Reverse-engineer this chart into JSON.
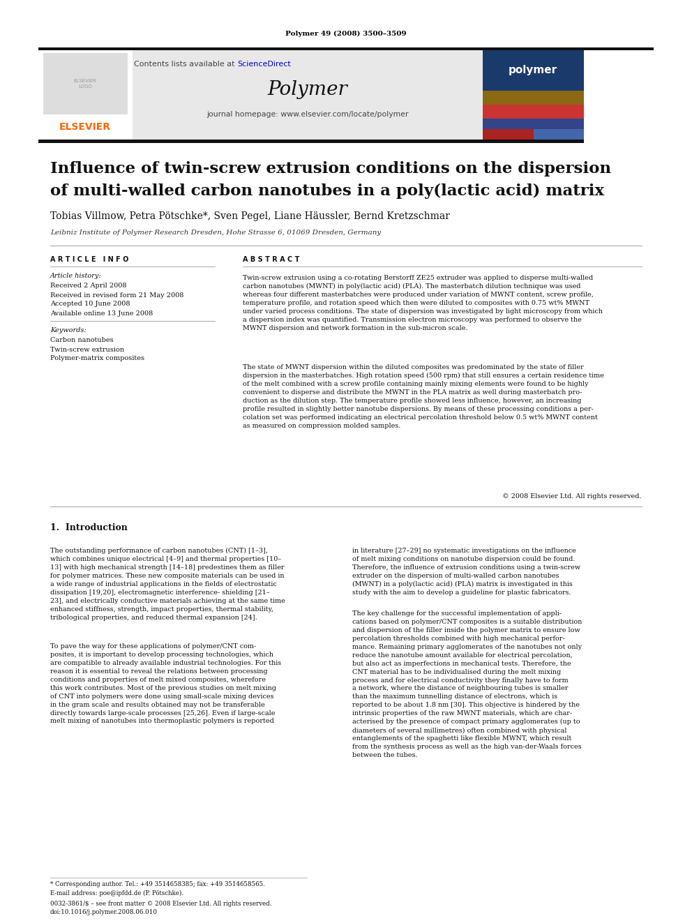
{
  "page_bg": "#ffffff",
  "top_journal_ref": "Polymer 49 (2008) 3500–3509",
  "journal_name": "Polymer",
  "journal_homepage": "journal homepage: www.elsevier.com/locate/polymer",
  "contents_text": "Contents lists available at ",
  "sciencedirect_text": "ScienceDirect",
  "header_bg": "#e8e8e8",
  "paper_title_line1": "Influence of twin-screw extrusion conditions on the dispersion",
  "paper_title_line2": "of multi-walled carbon nanotubes in a poly(lactic acid) matrix",
  "authors": "Tobias Villmow, Petra Pötschke*, Sven Pegel, Liane Häussler, Bernd Kretzschmar",
  "affiliation": "Leibniz Institute of Polymer Research Dresden, Hohe Strasse 6, 01069 Dresden, Germany",
  "article_info_header": "A R T I C L E   I N F O",
  "abstract_header": "A B S T R A C T",
  "article_history_label": "Article history:",
  "received": "Received 2 April 2008",
  "received_revised": "Received in revised form 21 May 2008",
  "accepted": "Accepted 10 June 2008",
  "available": "Available online 13 June 2008",
  "keywords_label": "Keywords:",
  "keyword1": "Carbon nanotubes",
  "keyword2": "Twin-screw extrusion",
  "keyword3": "Polymer-matrix composites",
  "abstract_para1": "Twin-screw extrusion using a co-rotating Berstorff ZE25 extruder was applied to disperse multi-walled\ncarbon nanotubes (MWNT) in poly(lactic acid) (PLA). The masterbatch dilution technique was used\nwhereas four different masterbatches were produced under variation of MWNT content, screw profile,\ntemperature profile, and rotation speed which then were diluted to composites with 0.75 wt% MWNT\nunder varied process conditions. The state of dispersion was investigated by light microscopy from which\na dispersion index was quantified. Transmission electron microscopy was performed to observe the\nMWNT dispersion and network formation in the sub-micron scale.",
  "abstract_para2": "The state of MWNT dispersion within the diluted composites was predominated by the state of filler\ndispersion in the masterbatches. High rotation speed (500 rpm) that still ensures a certain residence time\nof the melt combined with a screw profile containing mainly mixing elements were found to be highly\nconvenient to disperse and distribute the MWNT in the PLA matrix as well during masterbatch pro-\nduction as the dilution step. The temperature profile showed less influence, however, an increasing\nprofile resulted in slightly better nanotube dispersions. By means of these processing conditions a per-\ncolation set was performed indicating an electrical percolation threshold below 0.5 wt% MWNT content\nas measured on compression molded samples.",
  "copyright": "© 2008 Elsevier Ltd. All rights reserved.",
  "section1_title": "1.  Introduction",
  "intro_para1_col1": "The outstanding performance of carbon nanotubes (CNT) [1–3],\nwhich combines unique electrical [4–9] and thermal properties [10–\n13] with high mechanical strength [14–18] predestines them as filler\nfor polymer matrices. These new composite materials can be used in\na wide range of industrial applications in the fields of electrostatic\ndissipation [19,20], electromagnetic interference- shielding [21–\n23], and electrically conductive materials achieving at the same time\nenhanced stiffness, strength, impact properties, thermal stability,\ntribological properties, and reduced thermal expansion [24].",
  "intro_para2_col1": "To pave the way for these applications of polymer/CNT com-\nposites, it is important to develop processing technologies, which\nare compatible to already available industrial technologies. For this\nreason it is essential to reveal the relations between processing\nconditions and properties of melt mixed composites, wherefore\nthis work contributes. Most of the previous studies on melt mixing\nof CNT into polymers were done using small-scale mixing devices\nin the gram scale and results obtained may not be transferable\ndirectly towards large-scale processes [25,26]. Even if large-scale\nmelt mixing of nanotubes into thermoplastic polymers is reported",
  "intro_para1_col2": "in literature [27–29] no systematic investigations on the influence\nof melt mixing conditions on nanotube dispersion could be found.\nTherefore, the influence of extrusion conditions using a twin-screw\nextruder on the dispersion of multi-walled carbon nanotubes\n(MWNT) in a poly(lactic acid) (PLA) matrix is investigated in this\nstudy with the aim to develop a guideline for plastic fabricators.",
  "intro_para2_col2": "The key challenge for the successful implementation of appli-\ncations based on polymer/CNT composites is a suitable distribution\nand dispersion of the filler inside the polymer matrix to ensure low\npercolation thresholds combined with high mechanical perfor-\nmance. Remaining primary agglomerates of the nanotubes not only\nreduce the nanotube amount available for electrical percolation,\nbut also act as imperfections in mechanical tests. Therefore, the\nCNT material has to be individualised during the melt mixing\nprocess and for electrical conductivity they finally have to form\na network, where the distance of neighbouring tubes is smaller\nthan the maximum tunnelling distance of electrons, which is\nreported to be about 1.8 nm [30]. This objective is hindered by the\nintrinsic properties of the raw MWNT materials, which are char-\nacterised by the presence of compact primary agglomerates (up to\ndiameters of several millimetres) often combined with physical\nentanglements of the spaghetti like flexible MWNT, which result\nfrom the synthesis process as well as the high van-der-Waals forces\nbetween the tubes.",
  "footer_left": "* Corresponding author. Tel.: +49 3514658385; fax: +49 3514658565.",
  "footer_email": "E-mail address: poe@ipfdd.de (P. Pötschke).",
  "footer_bottom1": "0032-3861/$ – see front matter © 2008 Elsevier Ltd. All rights reserved.",
  "footer_bottom2": "doi:10.1016/j.polymer.2008.06.010",
  "elsevier_orange": "#FF6600",
  "link_blue": "#0000CC"
}
